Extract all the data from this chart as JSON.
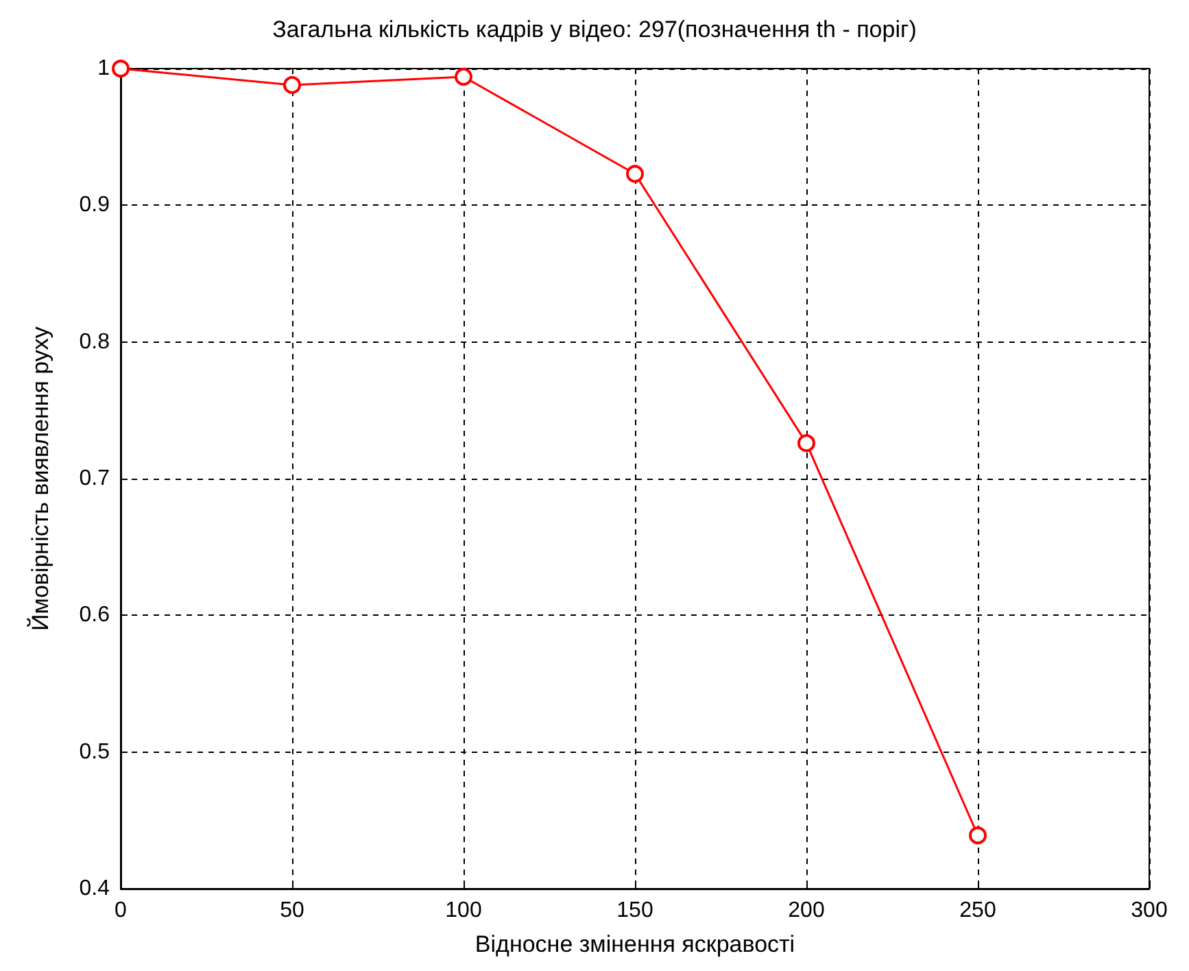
{
  "chart_data": {
    "type": "line",
    "title": "Загальна кількість кадрів у відео: 297(позначення th - поріг)",
    "xlabel": "Відносне змінення яскравості",
    "ylabel": "Ймовірність виявлення руху",
    "x": [
      0,
      50,
      100,
      150,
      200,
      250
    ],
    "series": [
      {
        "color": "#ff0000",
        "values": [
          1.0,
          0.988,
          0.994,
          0.923,
          0.726,
          0.439
        ]
      }
    ],
    "xlim": [
      0,
      300
    ],
    "xticks": [
      0,
      50,
      100,
      150,
      200,
      250,
      300
    ],
    "ylim": [
      0.4,
      1
    ],
    "yticks": [
      0.4,
      0.5,
      0.6,
      0.7,
      0.8,
      0.9,
      1
    ],
    "grid": true,
    "marker": "circle",
    "line_style": "solid"
  }
}
